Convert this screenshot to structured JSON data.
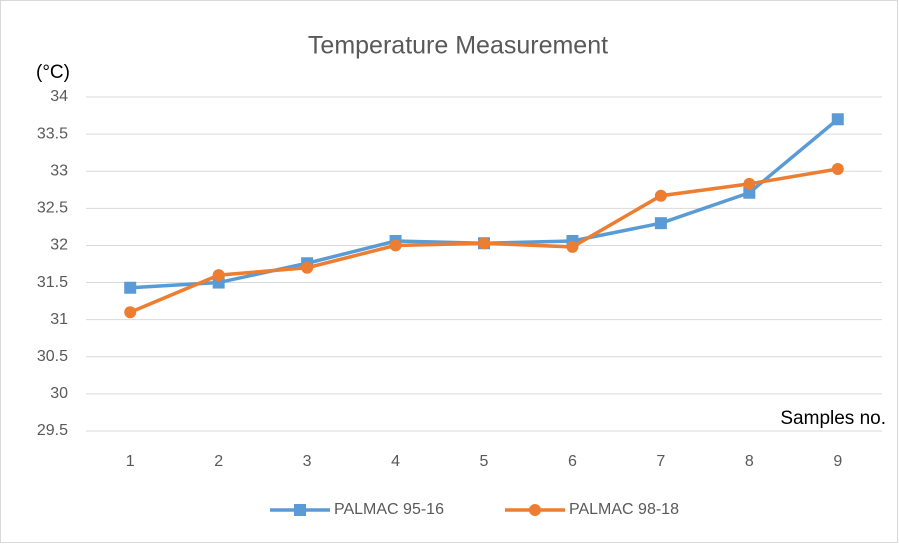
{
  "chart_data": {
    "type": "line",
    "title": "Temperature Measurement",
    "y_label": "(°C)",
    "x_label": "Samples no.",
    "categories": [
      "1",
      "2",
      "3",
      "4",
      "5",
      "6",
      "7",
      "8",
      "9"
    ],
    "series": [
      {
        "name": "PALMAC 95-16",
        "color": "#5b9bd5",
        "marker": "square",
        "values": [
          31.43,
          31.5,
          31.76,
          32.06,
          32.03,
          32.06,
          32.3,
          32.71,
          33.7
        ]
      },
      {
        "name": "PALMAC 98-18",
        "color": "#ed7d31",
        "marker": "circle",
        "values": [
          31.1,
          31.6,
          31.7,
          32.0,
          32.03,
          31.98,
          32.67,
          32.83,
          33.03
        ]
      }
    ],
    "ylim": [
      29.5,
      34
    ],
    "yticks": [
      29.5,
      30,
      30.5,
      31,
      31.5,
      32,
      32.5,
      33,
      33.5,
      34
    ],
    "grid": true,
    "legend": "bottom"
  }
}
